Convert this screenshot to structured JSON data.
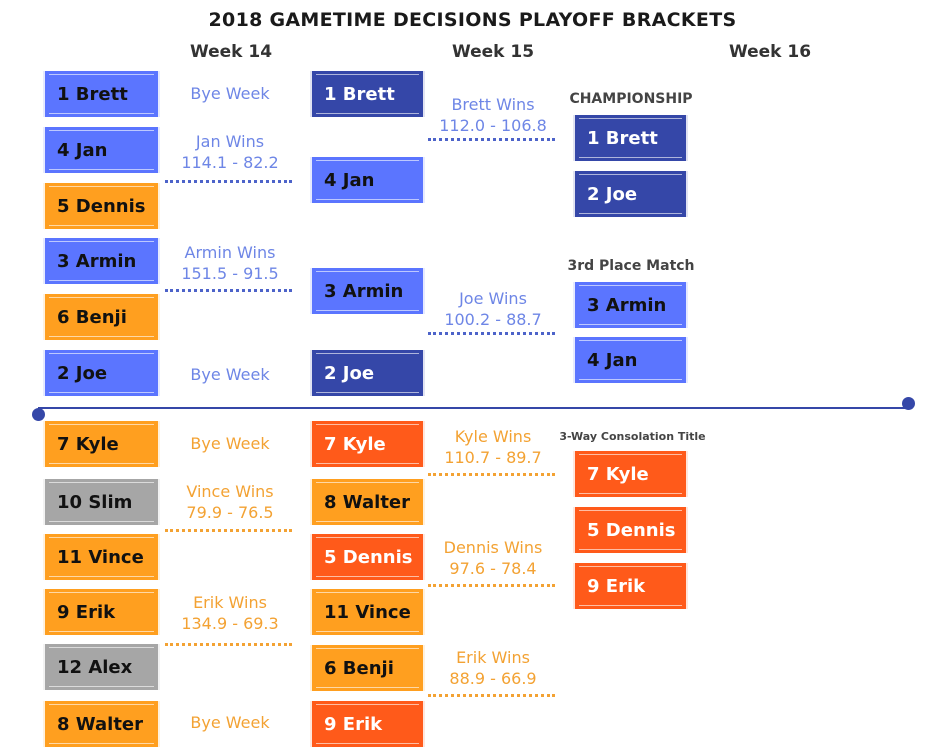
{
  "title": "2018 GAMETIME DECISIONS PLAYOFF BRACKETS",
  "weeks": [
    "Week 14",
    "Week 15",
    "Week 16"
  ],
  "colors": {
    "blue": "#5b75ff",
    "navy": "#3547a8",
    "orange": "#ff9f1f",
    "red": "#ff5a1a",
    "gray": "#a6a6a6"
  },
  "playoff": {
    "week14": [
      "1 Brett",
      "4 Jan",
      "5 Dennis",
      "3 Armin",
      "6 Benji",
      "2 Joe"
    ],
    "week14_results": [
      {
        "line1": "Bye Week",
        "line2": ""
      },
      {
        "line1": "Jan Wins",
        "line2": "114.1 - 82.2"
      },
      {
        "line1": "Armin Wins",
        "line2": "151.5 - 91.5"
      },
      {
        "line1": "Bye Week",
        "line2": ""
      }
    ],
    "week15": [
      "1 Brett",
      "4 Jan",
      "3 Armin",
      "2 Joe"
    ],
    "week15_results": [
      {
        "line1": "Brett Wins",
        "line2": "112.0 - 106.8"
      },
      {
        "line1": "Joe Wins",
        "line2": "100.2 - 88.7"
      }
    ],
    "championship": {
      "label": "CHAMPIONSHIP",
      "teams": [
        "1 Brett",
        "2 Joe"
      ]
    },
    "third_place": {
      "label": "3rd Place Match",
      "teams": [
        "3 Armin",
        "4 Jan"
      ]
    }
  },
  "consolation": {
    "week14": [
      "7 Kyle",
      "10 Slim",
      "11 Vince",
      "9 Erik",
      "12 Alex",
      "8 Walter"
    ],
    "week14_results": [
      {
        "line1": "Bye Week",
        "line2": ""
      },
      {
        "line1": "Vince Wins",
        "line2": "79.9 - 76.5"
      },
      {
        "line1": "Erik Wins",
        "line2": "134.9 - 69.3"
      },
      {
        "line1": "Bye Week",
        "line2": ""
      }
    ],
    "week15": [
      "7 Kyle",
      "8 Walter",
      "5 Dennis",
      "11 Vince",
      "6 Benji",
      "9 Erik"
    ],
    "week15_results": [
      {
        "line1": "Kyle Wins",
        "line2": "110.7 - 89.7"
      },
      {
        "line1": "Dennis Wins",
        "line2": "97.6 - 78.4"
      },
      {
        "line1": "Erik Wins",
        "line2": "88.9 - 66.9"
      }
    ],
    "title_match": {
      "label": "3-Way Consolation Title",
      "teams": [
        "7 Kyle",
        "5 Dennis",
        "9 Erik"
      ]
    }
  }
}
